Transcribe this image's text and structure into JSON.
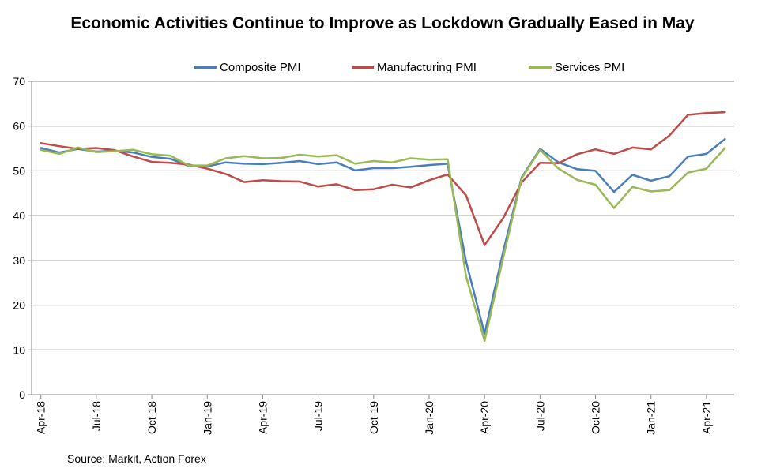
{
  "chart_data": {
    "type": "line",
    "title": "Economic Activities Continue to Improve as Lockdown Gradually Eased in May",
    "xlabel": "",
    "ylabel": "",
    "ylim": [
      0,
      70
    ],
    "yticks": [
      "0",
      "10",
      "20",
      "30",
      "40",
      "50",
      "60",
      "70"
    ],
    "x_tick_labels": [
      "Apr-18",
      "Jul-18",
      "Oct-18",
      "Jan-19",
      "Apr-19",
      "Jul-19",
      "Oct-19",
      "Jan-20",
      "Apr-20",
      "Jul-20",
      "Oct-20",
      "Jan-21",
      "Apr-21"
    ],
    "x": [
      "Apr-18",
      "May-18",
      "Jun-18",
      "Jul-18",
      "Aug-18",
      "Sep-18",
      "Oct-18",
      "Nov-18",
      "Dec-18",
      "Jan-19",
      "Feb-19",
      "Mar-19",
      "Apr-19",
      "May-19",
      "Jun-19",
      "Jul-19",
      "Aug-19",
      "Sep-19",
      "Oct-19",
      "Nov-19",
      "Dec-19",
      "Jan-20",
      "Feb-20",
      "Mar-20",
      "Apr-20",
      "May-20",
      "Jun-20",
      "Jul-20",
      "Aug-20",
      "Sep-20",
      "Oct-20",
      "Nov-20",
      "Dec-20",
      "Jan-21",
      "Feb-21",
      "Mar-21",
      "Apr-21",
      "May-21"
    ],
    "series": [
      {
        "name": "Composite PMI",
        "color": "#4a7ebb",
        "values": [
          55.1,
          54.1,
          54.9,
          54.3,
          54.5,
          54.1,
          53.1,
          52.7,
          51.1,
          51.0,
          51.9,
          51.6,
          51.5,
          51.8,
          52.2,
          51.5,
          51.9,
          50.1,
          50.6,
          50.6,
          50.9,
          51.3,
          51.6,
          29.7,
          13.6,
          31.9,
          48.5,
          54.9,
          51.9,
          50.4,
          50.0,
          45.3,
          49.1,
          47.8,
          48.8,
          53.2,
          53.8,
          57.1
        ]
      },
      {
        "name": "Manufacturing PMI",
        "color": "#be4b48",
        "values": [
          56.2,
          55.5,
          54.9,
          55.1,
          54.6,
          53.2,
          52.0,
          51.8,
          51.4,
          50.5,
          49.3,
          47.5,
          47.9,
          47.7,
          47.6,
          46.5,
          47.0,
          45.7,
          45.9,
          46.9,
          46.3,
          47.9,
          49.2,
          44.5,
          33.4,
          39.4,
          47.4,
          51.8,
          51.7,
          53.7,
          54.8,
          53.8,
          55.2,
          54.8,
          57.9,
          62.5,
          62.9,
          63.1
        ]
      },
      {
        "name": "Services PMI",
        "color": "#98b954",
        "values": [
          54.7,
          53.8,
          55.2,
          54.2,
          54.4,
          54.7,
          53.7,
          53.4,
          51.2,
          51.2,
          52.8,
          53.3,
          52.8,
          52.9,
          53.6,
          53.2,
          53.5,
          51.6,
          52.2,
          51.9,
          52.8,
          52.5,
          52.6,
          26.4,
          12.0,
          30.5,
          48.3,
          54.7,
          50.5,
          48.0,
          46.9,
          41.7,
          46.4,
          45.4,
          45.7,
          49.6,
          50.5,
          55.1
        ]
      }
    ]
  },
  "source_text": "Source: Markit, Action Forex"
}
